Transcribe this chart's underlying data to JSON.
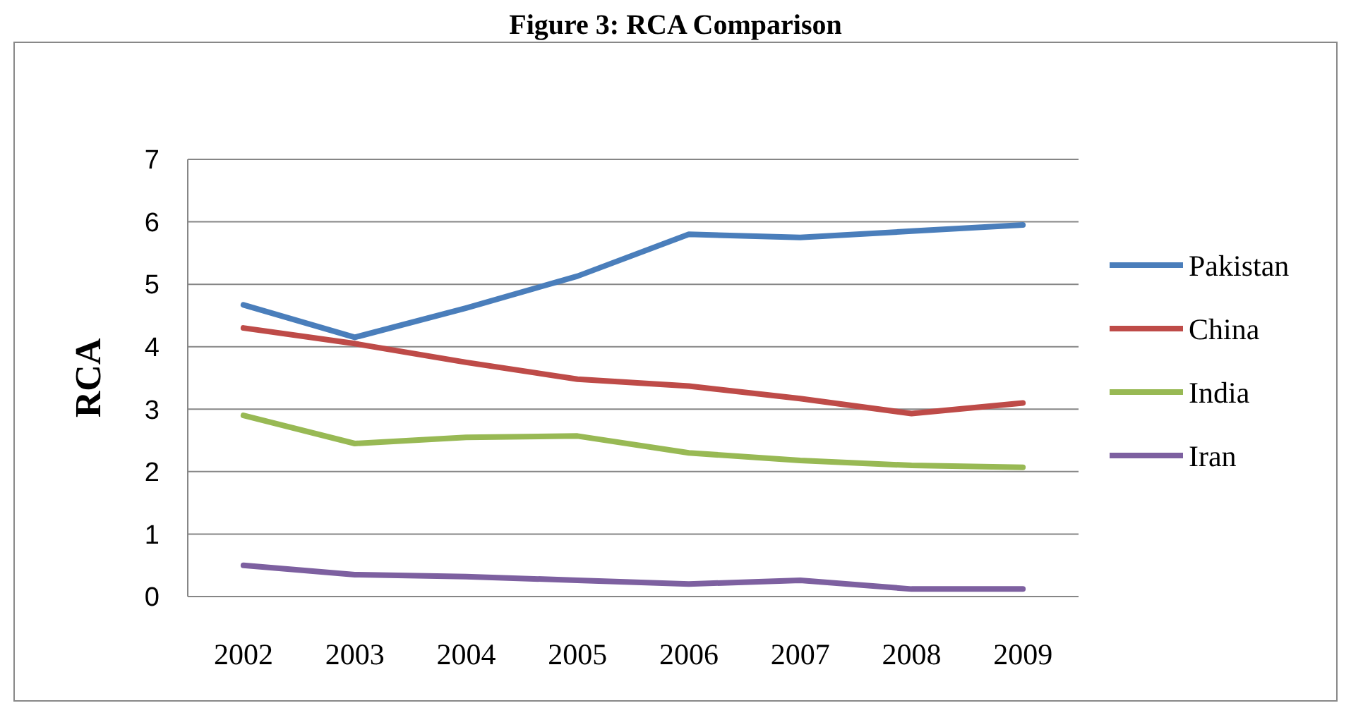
{
  "chart_data": {
    "type": "line",
    "title": "Figure 3: RCA Comparison",
    "ylabel": "RCA",
    "categories": [
      "2002",
      "2003",
      "2004",
      "2005",
      "2006",
      "2007",
      "2008",
      "2009"
    ],
    "series": [
      {
        "name": "Pakistan",
        "color": "#4a7ebb",
        "values": [
          4.67,
          4.15,
          4.62,
          5.13,
          5.8,
          5.75,
          5.85,
          5.95
        ]
      },
      {
        "name": "China",
        "color": "#be4b48",
        "values": [
          4.3,
          4.05,
          3.75,
          3.48,
          3.37,
          3.17,
          2.93,
          3.1
        ]
      },
      {
        "name": "India",
        "color": "#98b954",
        "values": [
          2.9,
          2.45,
          2.55,
          2.57,
          2.3,
          2.18,
          2.1,
          2.07
        ]
      },
      {
        "name": "Iran",
        "color": "#7d60a0",
        "values": [
          0.5,
          0.35,
          0.32,
          0.26,
          0.2,
          0.26,
          0.12,
          0.12
        ]
      }
    ],
    "ylim": [
      0,
      7
    ],
    "yticks": [
      0,
      1,
      2,
      3,
      4,
      5,
      6,
      7
    ],
    "grid": "y",
    "legend": "right",
    "marker": "none",
    "line_style": "solid"
  }
}
